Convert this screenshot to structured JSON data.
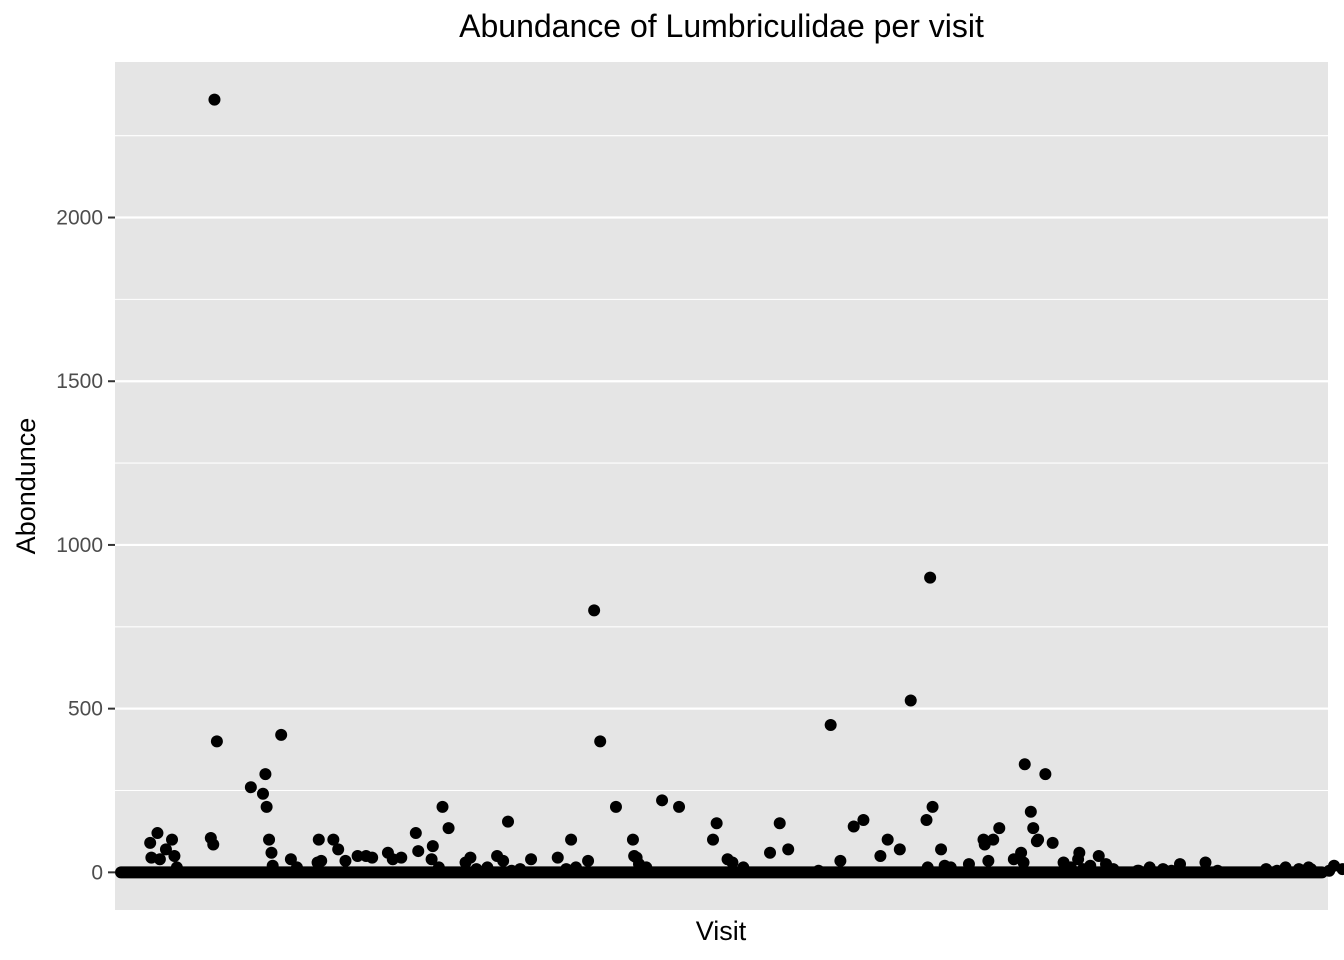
{
  "chart_data": {
    "type": "scatter",
    "title": "Abundance of Lumbriculidae per visit",
    "xlabel": "Visit",
    "ylabel": "Abondunce",
    "ylim": [
      -115,
      2475
    ],
    "y_ticks": [
      0,
      500,
      1000,
      1500,
      2000
    ],
    "x_tick_labels": "none",
    "grid": true,
    "point_color": "#000000",
    "panel_background": "#e5e5e5",
    "gridline_color": "#ffffff",
    "x_range": [
      0,
      1000
    ],
    "series": [
      {
        "x": [
          82,
          84,
          79,
          81,
          29,
          30,
          35,
          42,
          47,
          49,
          37,
          51,
          112,
          122,
          124,
          125,
          127,
          129,
          130,
          137,
          145,
          150,
          167,
          168,
          170,
          180,
          184,
          190,
          200,
          207,
          212,
          225,
          229,
          236,
          248,
          250,
          261,
          262,
          267,
          270,
          275,
          289,
          293,
          298,
          307,
          315,
          320,
          324,
          327,
          334,
          343,
          365,
          372,
          376,
          380,
          390,
          395,
          400,
          413,
          427,
          428,
          430,
          432,
          438,
          451,
          465,
          493,
          496,
          505,
          509,
          518,
          540,
          548,
          555,
          580,
          590,
          598,
          609,
          617,
          631,
          637,
          647,
          656,
          669,
          670,
          672,
          674,
          681,
          684,
          689,
          704,
          716,
          717,
          720,
          724,
          729,
          741,
          747,
          749,
          750,
          755,
          757,
          760,
          761,
          767,
          773,
          782,
          788,
          794,
          795,
          798,
          804,
          811,
          817,
          823,
          843,
          844,
          853,
          864,
          866,
          871,
          878,
          899,
          909,
          949,
          958,
          965,
          976,
          980,
          984,
          986,
          1001,
          1005,
          1012,
          1020
        ],
        "y": [
          2360,
          400,
          105,
          85,
          90,
          45,
          120,
          70,
          100,
          50,
          40,
          15,
          260,
          240,
          300,
          200,
          100,
          60,
          20,
          420,
          40,
          15,
          30,
          100,
          35,
          100,
          70,
          35,
          50,
          50,
          45,
          60,
          40,
          45,
          120,
          65,
          40,
          80,
          15,
          200,
          135,
          30,
          45,
          10,
          15,
          50,
          35,
          155,
          5,
          10,
          40,
          45,
          10,
          100,
          15,
          35,
          800,
          400,
          200,
          100,
          50,
          45,
          25,
          15,
          220,
          200,
          100,
          150,
          40,
          30,
          15,
          60,
          150,
          70,
          5,
          450,
          35,
          140,
          160,
          50,
          100,
          70,
          525,
          160,
          15,
          900,
          200,
          70,
          20,
          15,
          25,
          100,
          85,
          35,
          100,
          135,
          40,
          60,
          30,
          330,
          185,
          135,
          95,
          100,
          300,
          90,
          30,
          15,
          40,
          60,
          10,
          20,
          50,
          25,
          10,
          5,
          5,
          15,
          10,
          5,
          5,
          25,
          30,
          5,
          10,
          5,
          15,
          10,
          5,
          15,
          10,
          5,
          20,
          10,
          5
        ]
      }
    ],
    "zero_dense_band": true
  }
}
